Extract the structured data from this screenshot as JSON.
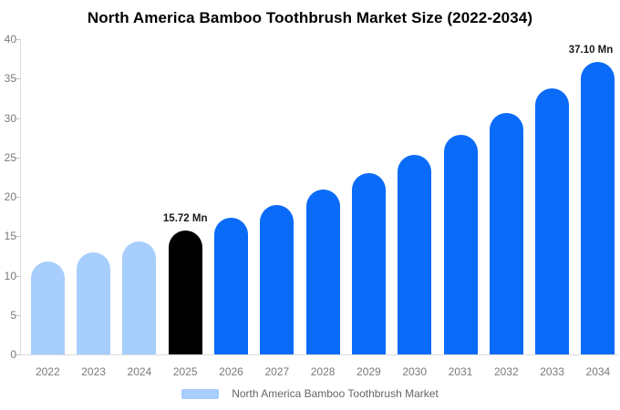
{
  "chart_data": {
    "type": "bar",
    "title": "North America Bamboo Toothbrush Market Size (2022-2034)",
    "legend": "North America Bamboo Toothbrush Market",
    "legend_position": "bottom",
    "unit": "Mn",
    "grid": "off",
    "categories": [
      "2022",
      "2023",
      "2024",
      "2025",
      "2026",
      "2027",
      "2028",
      "2029",
      "2030",
      "2031",
      "2032",
      "2033",
      "2034"
    ],
    "values": [
      11.8,
      13.0,
      14.3,
      15.72,
      17.3,
      19.0,
      20.9,
      23.0,
      25.3,
      27.9,
      30.6,
      33.7,
      37.1
    ],
    "point_labels": {
      "2025": "15.72 Mn",
      "2034": "37.10 Mn"
    },
    "bar_roles": [
      "historical",
      "historical",
      "historical",
      "base",
      "forecast",
      "forecast",
      "forecast",
      "forecast",
      "forecast",
      "forecast",
      "forecast",
      "forecast",
      "forecast"
    ],
    "colors": {
      "historical": "#a7cefc",
      "base": "#000000",
      "forecast": "#0a6bf8",
      "legend_swatch": "#a7cefc",
      "axis_line": "#dcdcdc",
      "tick_label": "#7a7a7a"
    },
    "y_ticks": [
      "0",
      "5",
      "10",
      "15",
      "20",
      "25",
      "30",
      "35",
      "40"
    ],
    "ylim": [
      0,
      40
    ],
    "xlabel": "",
    "ylabel": ""
  }
}
